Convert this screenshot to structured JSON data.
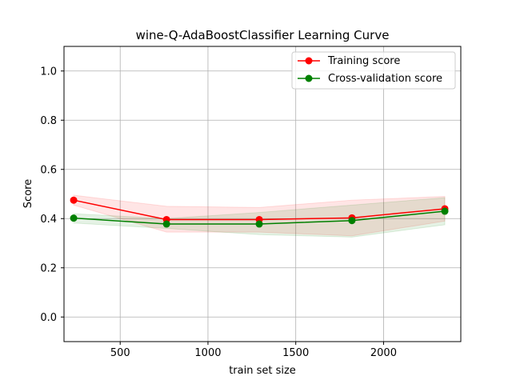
{
  "chart_data": {
    "type": "line",
    "title": "wine-Q-AdaBoostClassifier Learning Curve",
    "xlabel": "train set size",
    "ylabel": "Score",
    "xlim": [
      180,
      2440
    ],
    "ylim": [
      -0.1,
      1.1
    ],
    "xticks": [
      500,
      1000,
      1500,
      2000
    ],
    "xtick_labels": [
      "500",
      "1000",
      "1500",
      "2000"
    ],
    "yticks": [
      0.0,
      0.2,
      0.4,
      0.6,
      0.8,
      1.0
    ],
    "ytick_labels": [
      "0.0",
      "0.2",
      "0.4",
      "0.6",
      "0.8",
      "1.0"
    ],
    "grid": true,
    "legend_position": "top-right",
    "x": [
      235,
      764,
      1292,
      1820,
      2349
    ],
    "series": [
      {
        "name": "Training score",
        "color": "#ff0000",
        "values": [
          0.475,
          0.396,
          0.396,
          0.403,
          0.44
        ],
        "band_lower": [
          0.455,
          0.345,
          0.345,
          0.33,
          0.39
        ],
        "band_upper": [
          0.495,
          0.45,
          0.445,
          0.475,
          0.49
        ]
      },
      {
        "name": "Cross-validation score",
        "color": "#008000",
        "values": [
          0.402,
          0.378,
          0.378,
          0.392,
          0.43
        ],
        "band_lower": [
          0.382,
          0.36,
          0.335,
          0.325,
          0.375
        ],
        "band_upper": [
          0.42,
          0.4,
          0.425,
          0.455,
          0.485
        ]
      }
    ]
  }
}
